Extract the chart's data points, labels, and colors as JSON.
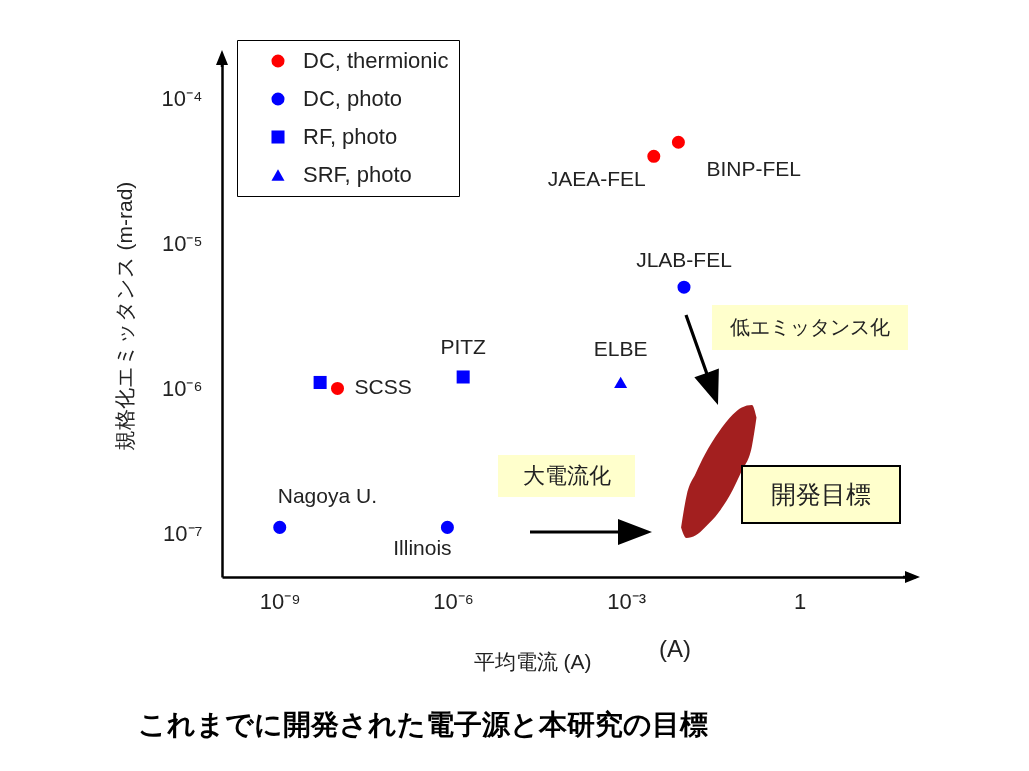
{
  "chart_data": {
    "type": "scatter",
    "title": "これまでに開発された電子源と本研究の目標",
    "xlabel": "平均電流 (A)",
    "ylabel": "規格化エミッタンス (m-rad)",
    "log": "xy",
    "xlim": [
      1e-10,
      100
    ],
    "ylim": [
      5e-08,
      0.0002
    ],
    "xticks": [
      {
        "value": 1e-09,
        "label": "10⁻⁹"
      },
      {
        "value": 1e-06,
        "label": "10⁻⁶"
      },
      {
        "value": 0.001,
        "label": "10⁻³"
      },
      1
    ],
    "yticks": [
      {
        "value": 1e-07,
        "label": "10⁻⁷"
      },
      {
        "value": 1e-06,
        "label": "10⁻⁶"
      },
      {
        "value": 1e-05,
        "label": "10⁻⁵"
      },
      {
        "value": 0.0001,
        "label": "10⁻⁴"
      }
    ],
    "legend": "top left",
    "series": [
      {
        "name": "DC, thermionic",
        "color": "#ff0000",
        "marker": "circle",
        "x": [
          1e-08,
          0.003,
          0.008
        ],
        "values": [
          1e-06,
          4e-05,
          5e-05
        ]
      },
      {
        "name": "DC, photo",
        "color": "#0000ff",
        "marker": "circle",
        "x": [
          1e-09,
          8e-07,
          0.01
        ],
        "values": [
          1.1e-07,
          1.1e-07,
          5e-06
        ]
      },
      {
        "name": "RF, photo",
        "color": "#0000ff",
        "marker": "square",
        "x": [
          5e-09,
          1.5e-06
        ],
        "values": [
          1.1e-06,
          1.2e-06
        ]
      },
      {
        "name": "SRF, photo",
        "color": "#0000ff",
        "marker": "triangle",
        "x": [
          0.0008
        ],
        "values": [
          1.1e-06
        ]
      },
      {
        "type": "area",
        "color": "#a31f1f",
        "x": [
          0.0089,
          0.011,
          0.016,
          0.023,
          0.04,
          0.07,
          0.1,
          0.15,
          0.18
        ],
        "values": [
          null,
          null,
          null,
          null,
          null,
          null,
          null,
          null,
          null
        ],
        "lower": [
          1.1e-07,
          9.3e-08,
          9.7e-08,
          1.1e-07,
          1.4e-07,
          2e-07,
          2.7e-07,
          4e-07,
          6.3e-07
        ],
        "upper": [
          1.1e-07,
          1.8e-07,
          2.6e-07,
          3.5e-07,
          5e-07,
          6.6e-07,
          7.4e-07,
          7.7e-07,
          6.3e-07
        ]
      }
    ],
    "annotations": [
      {
        "text": "JAEA-FEL",
        "x": 0.003,
        "y": 4e-05
      },
      {
        "text": "BINP-FEL",
        "x": 0.008,
        "y": 5e-05
      },
      {
        "text": "JLAB-FEL",
        "x": 0.01,
        "y": 5e-06
      },
      {
        "text": "PITZ",
        "x": 1.5e-06,
        "y": 1.2e-06
      },
      {
        "text": "ELBE",
        "x": 0.0008,
        "y": 1.1e-06
      },
      {
        "text": "SCSS",
        "x": 1e-08,
        "y": 1e-06
      },
      {
        "text": "Nagoya U.",
        "x": 1e-09,
        "y": 1.1e-07
      },
      {
        "text": "Illinois",
        "x": 8e-07,
        "y": 1.1e-07
      },
      "大電流化",
      "低エミッタンス化",
      "開発目標",
      "(A)"
    ]
  }
}
